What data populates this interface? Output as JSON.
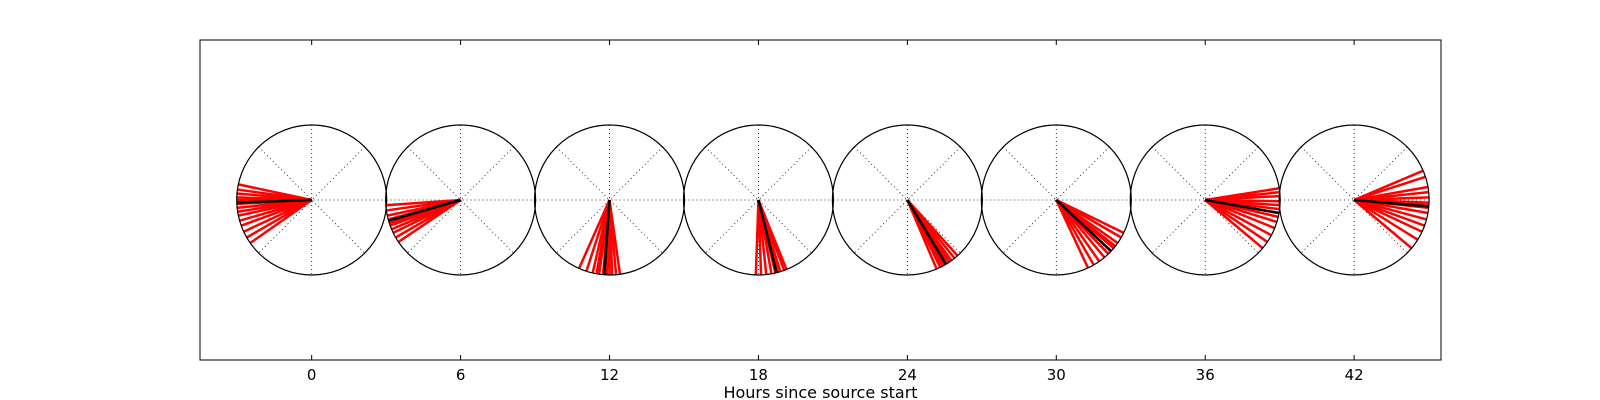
{
  "chart_data": {
    "type": "scatter",
    "title": "",
    "xlabel": "Hours since source start",
    "ylabel": "",
    "xlim": [
      -4.5,
      45.5
    ],
    "x_ticks": [
      0,
      6,
      12,
      18,
      24,
      30,
      36,
      42
    ],
    "x_tick_labels": [
      "0",
      "6",
      "12",
      "18",
      "24",
      "30",
      "36",
      "42"
    ],
    "grid": false,
    "marker": "compass rose",
    "colors": {
      "wind_vector": "#ff0000",
      "mean_vector": "#000000",
      "frame": "#000000"
    },
    "series": [
      {
        "values": [
          {
            "x": 0,
            "mean": 182,
            "vectors": [
              168,
              172,
              175,
              178,
              180,
              183,
              186,
              189,
              192,
              196,
              200,
              205,
              210,
              215
            ]
          },
          {
            "x": 6,
            "mean": 196,
            "vectors": [
              184,
              188,
              192,
              195,
              198,
              200,
              203,
              206,
              210,
              214
            ]
          },
          {
            "x": 12,
            "mean": 266,
            "vectors": [
              246,
              252,
              257,
              260,
              262,
              265,
              268,
              270,
              272,
              275,
              278
            ]
          },
          {
            "x": 18,
            "mean": 284,
            "vectors": [
              268,
              272,
              276,
              280,
              283,
              285,
              287,
              290,
              292
            ]
          },
          {
            "x": 24,
            "mean": 301,
            "vectors": [
              293,
              296,
              298,
              300,
              302,
              304,
              306,
              309,
              312
            ]
          },
          {
            "x": 30,
            "mean": 317,
            "vectors": [
              295,
              300,
              305,
              310,
              314,
              317,
              320,
              322,
              325,
              330,
              334
            ]
          },
          {
            "x": 36,
            "mean": 350,
            "vectors": [
              320,
              326,
              332,
              338,
              343,
              347,
              350,
              353,
              356,
              359,
              3,
              6,
              9
            ]
          },
          {
            "x": 42,
            "mean": 355,
            "vectors": [
              320,
              328,
              335,
              340,
              345,
              350,
              354,
              356,
              358,
              2,
              6,
              10,
              18,
              23
            ]
          }
        ]
      }
    ]
  }
}
